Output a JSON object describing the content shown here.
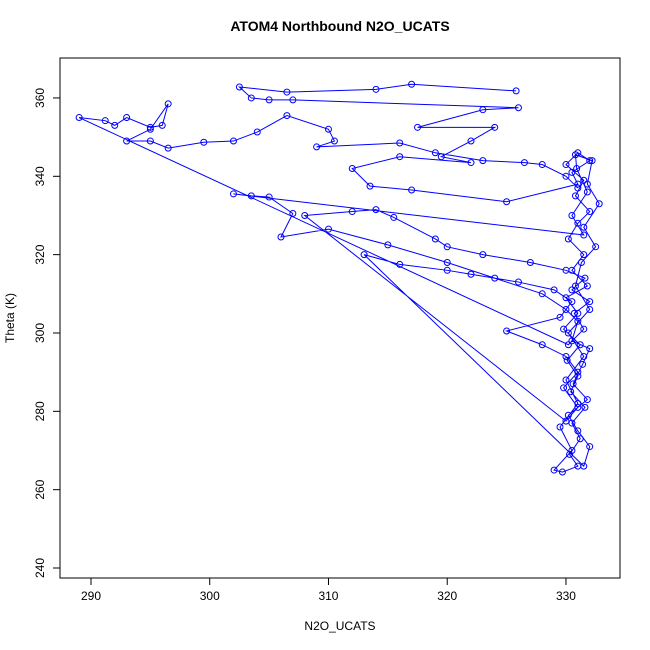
{
  "chart_data": {
    "type": "line",
    "title": "ATOM4 Northbound N2O_UCATS",
    "x_label": "N2O_UCATS",
    "y_label": "Theta (K)",
    "xlim": [
      287.39,
      334.55
    ],
    "ylim": [
      237.45,
      370.2
    ],
    "xticks": [
      290,
      300,
      310,
      320,
      330
    ],
    "yticks": [
      240,
      260,
      280,
      300,
      320,
      340,
      360
    ],
    "markers": true,
    "series": [
      {
        "color": "#0000ff",
        "x": [
          325.8,
          317,
          314,
          306.5,
          302.5,
          303.5,
          305,
          307,
          326,
          323,
          317.5,
          324,
          322,
          319.5,
          322,
          316,
          312,
          313.5,
          317,
          325,
          331,
          330.5,
          332,
          331,
          330,
          331.5,
          330.8,
          332,
          331,
          330.2,
          331.5,
          330.5,
          331.8,
          330,
          331,
          329.8,
          331.2,
          330.1,
          331,
          330.4,
          331.6,
          330.5,
          331.2,
          330.3,
          331,
          329.7,
          329,
          330.5,
          329.5,
          331,
          330,
          331.5,
          330.2,
          332,
          330.8,
          331.3,
          332.5,
          331.5,
          332.8,
          331.8,
          332.2,
          330.8,
          330.9,
          331.8,
          330.5,
          331.5,
          302,
          303.5,
          305,
          307,
          306,
          310,
          315,
          320,
          324,
          328,
          330,
          331,
          330.5,
          332,
          331.4,
          330.6,
          331.8,
          330.2,
          331,
          332,
          331.5,
          313,
          316,
          320,
          322,
          326,
          329,
          330.5,
          329.5,
          325,
          328,
          330,
          331,
          329.8,
          331,
          330,
          308,
          312,
          314,
          315.5,
          319,
          320,
          323,
          327,
          330,
          331.6,
          330.5,
          332,
          330.7,
          331.5,
          330.2,
          289,
          291.2,
          292,
          293,
          295,
          296,
          296.5,
          295,
          293,
          295,
          296.5,
          299.5,
          302,
          304,
          306.5,
          310,
          310.5,
          309,
          316,
          319,
          323,
          326.5,
          328,
          330,
          331
        ],
        "values": [
          361.8,
          363.5,
          362.2,
          361.5,
          362.8,
          360,
          359.5,
          359.5,
          357.5,
          357,
          352.5,
          352.5,
          349,
          345,
          343.5,
          345,
          342,
          337.5,
          336.5,
          333.5,
          338,
          341,
          344,
          346,
          343,
          339,
          335,
          331,
          328,
          324,
          320,
          316,
          312,
          309,
          305,
          301,
          297,
          293,
          289,
          285,
          281,
          277,
          273,
          269,
          266,
          264.5,
          265,
          270,
          276,
          282,
          288,
          294,
          300,
          306,
          312,
          318,
          322,
          327,
          333,
          338,
          344,
          345.5,
          342,
          336,
          330,
          325,
          335.5,
          335,
          334.7,
          330.5,
          324.5,
          326.5,
          322.5,
          318,
          314,
          310,
          306,
          303,
          298,
          296,
          292,
          287,
          283,
          279,
          275,
          271,
          266,
          320,
          317.5,
          316,
          315,
          313,
          311,
          308,
          304,
          300.5,
          297,
          294,
          290,
          286,
          281,
          277.5,
          330,
          331,
          331.5,
          329.5,
          324,
          322,
          320,
          318,
          316,
          314,
          311,
          308,
          305,
          301,
          297,
          355,
          354.2,
          353,
          355,
          352.5,
          353,
          358.5,
          352,
          349,
          349,
          347.2,
          348.7,
          349,
          351.3,
          355.5,
          352,
          349,
          347.5,
          348.5,
          346,
          344,
          343.5,
          343,
          340,
          337
        ]
      }
    ]
  }
}
